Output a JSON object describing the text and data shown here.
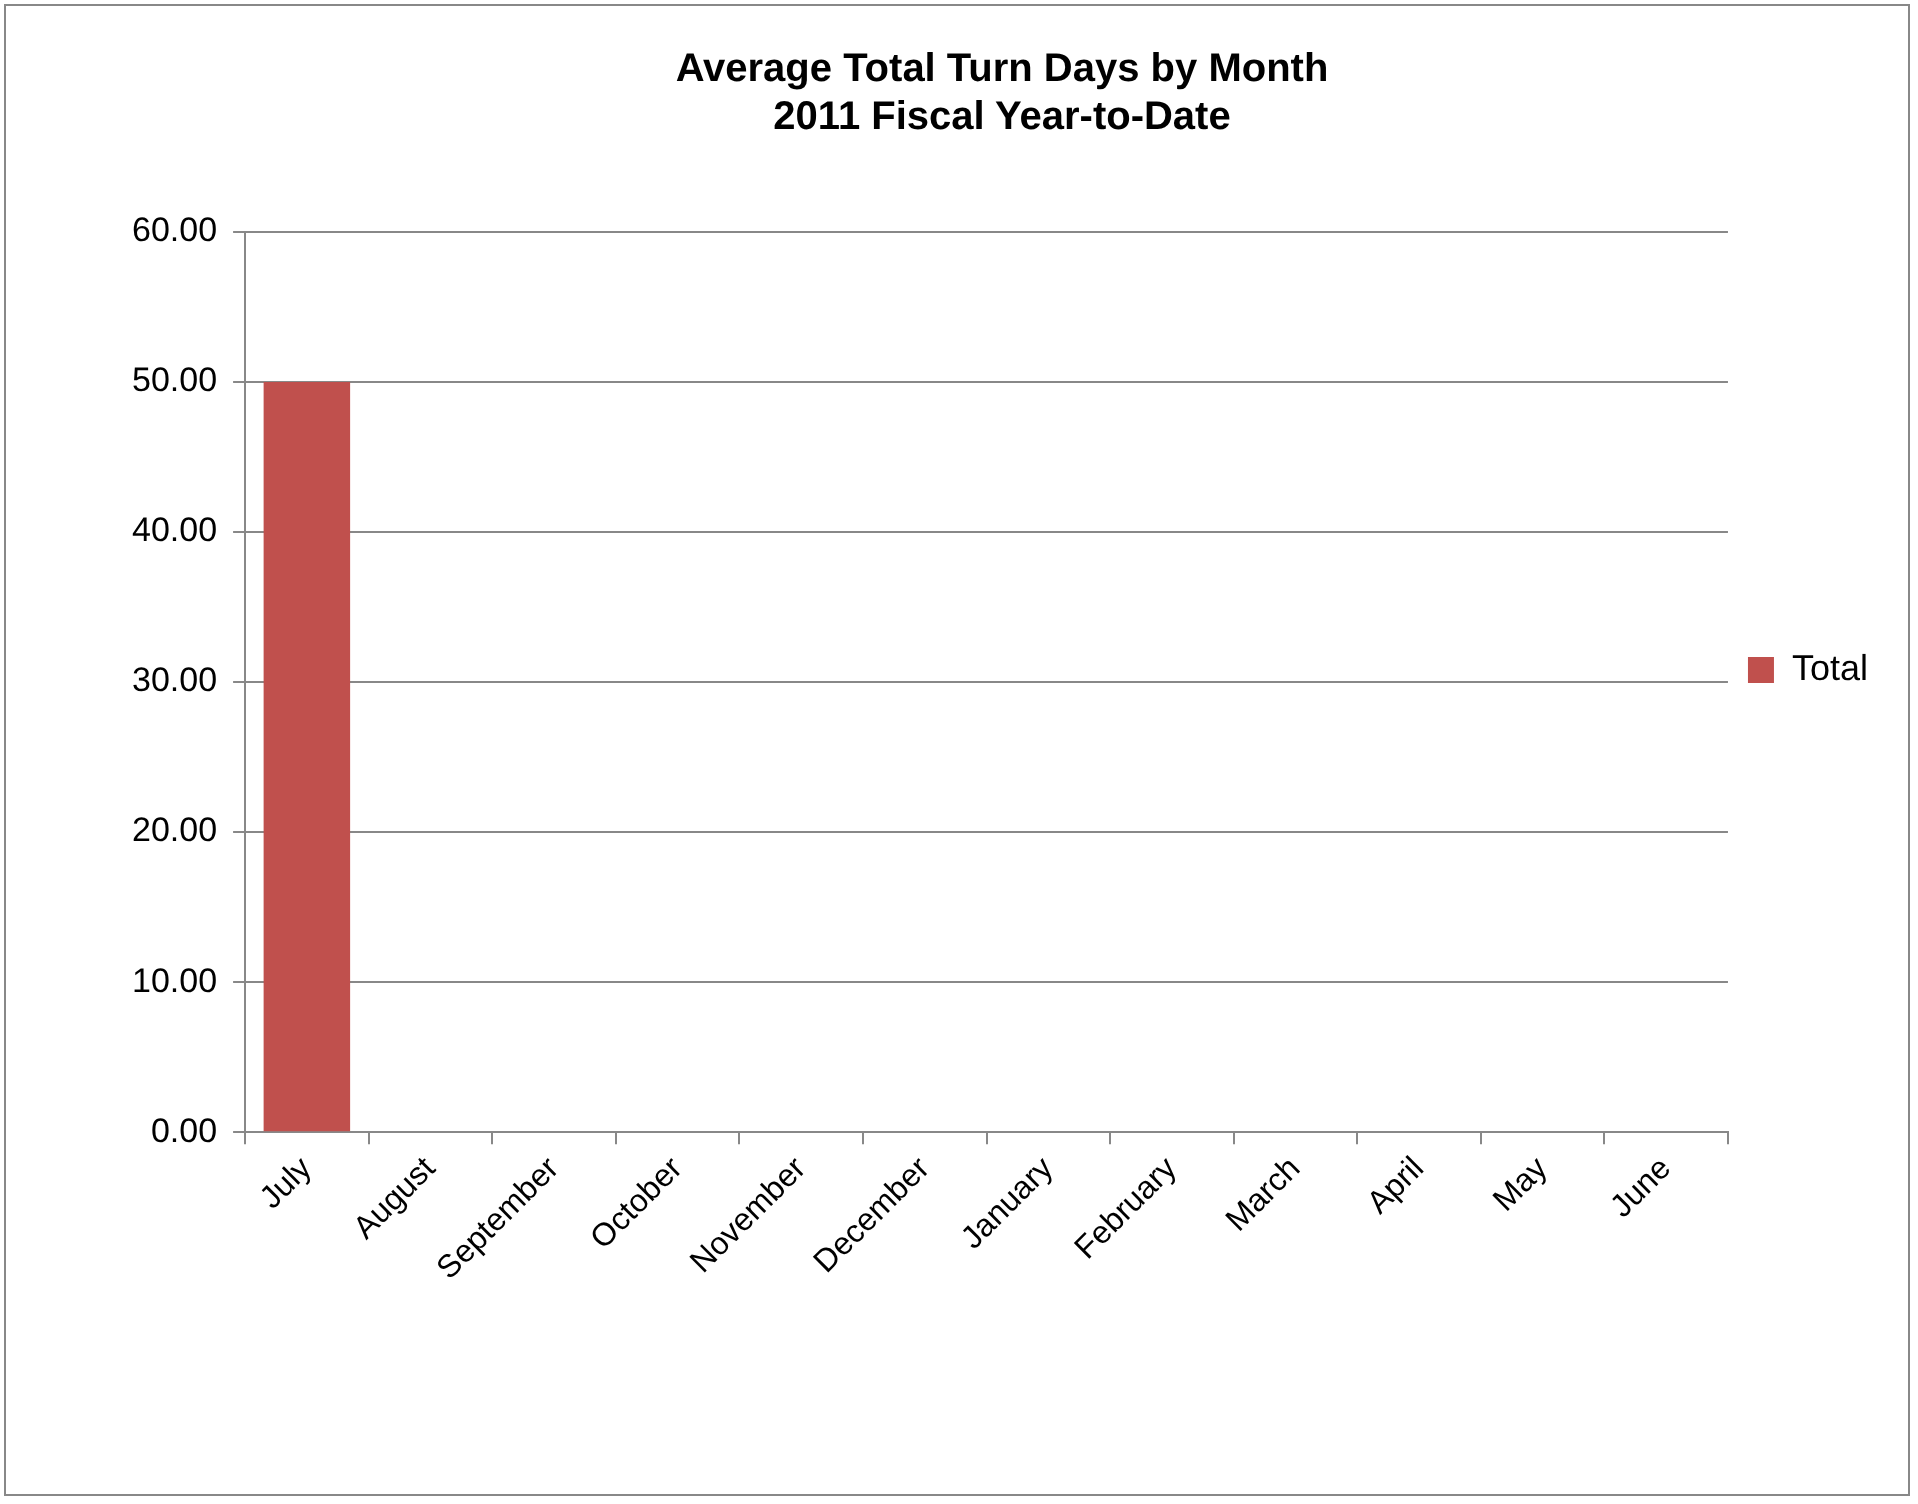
{
  "chart_data": {
    "type": "bar",
    "title": "Average Total Turn Days by Month\n2011 Fiscal Year-to-Date",
    "categories": [
      "July",
      "August",
      "September",
      "October",
      "November",
      "December",
      "January",
      "February",
      "March",
      "April",
      "May",
      "June"
    ],
    "series": [
      {
        "name": "Total",
        "color": "#c0504d",
        "values": [
          50.0,
          null,
          null,
          null,
          null,
          null,
          null,
          null,
          null,
          null,
          null,
          null
        ]
      }
    ],
    "ylim": [
      0,
      60
    ],
    "yticks": [
      {
        "value": 0,
        "label": "0.00"
      },
      {
        "value": 10,
        "label": "10.00"
      },
      {
        "value": 20,
        "label": "20.00"
      },
      {
        "value": 30,
        "label": "30.00"
      },
      {
        "value": 40,
        "label": "40.00"
      },
      {
        "value": 50,
        "label": "50.00"
      },
      {
        "value": 60,
        "label": "60.00"
      }
    ],
    "grid": "y",
    "legend": "right"
  }
}
